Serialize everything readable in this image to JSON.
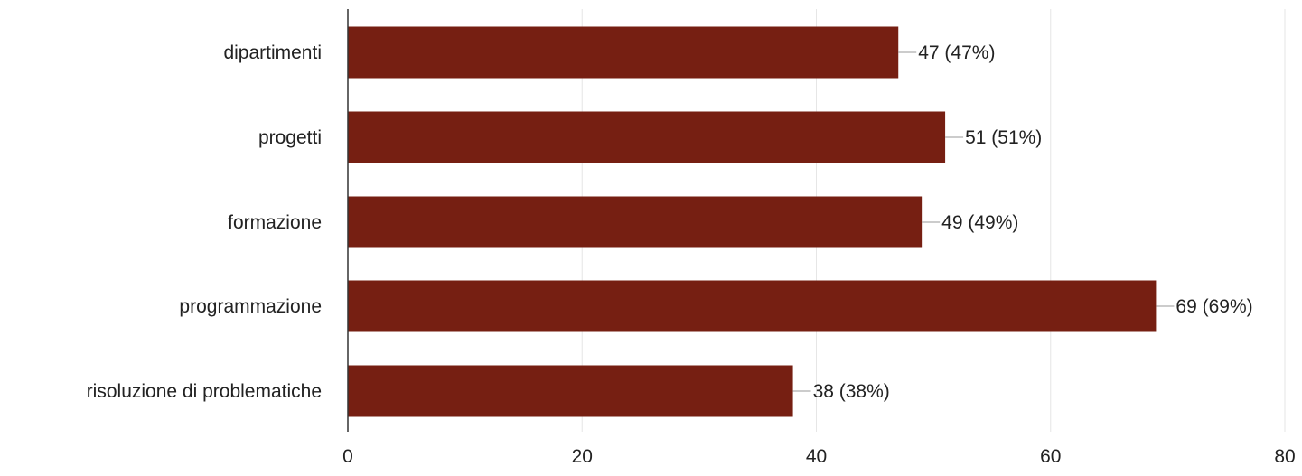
{
  "chart_data": {
    "type": "bar",
    "orientation": "horizontal",
    "title": "",
    "xlabel": "",
    "ylabel": "",
    "categories": [
      "dipartimenti",
      "progetti",
      "formazione",
      "programmazione",
      "risoluzione di problematiche"
    ],
    "values": [
      47,
      51,
      49,
      69,
      38
    ],
    "data_labels": [
      "47 (47%)",
      "51 (51%)",
      "49 (49%)",
      "69 (69%)",
      "38 (38%)"
    ],
    "xlim": [
      0,
      80
    ],
    "x_ticks": [
      "0",
      "20",
      "40",
      "60",
      "80"
    ],
    "grid": true,
    "legend": "none",
    "colors": {
      "bar": "#761f12",
      "grid": "#e6e6e6",
      "axis": "#333333",
      "text": "#222222",
      "leader": "#999999"
    }
  }
}
